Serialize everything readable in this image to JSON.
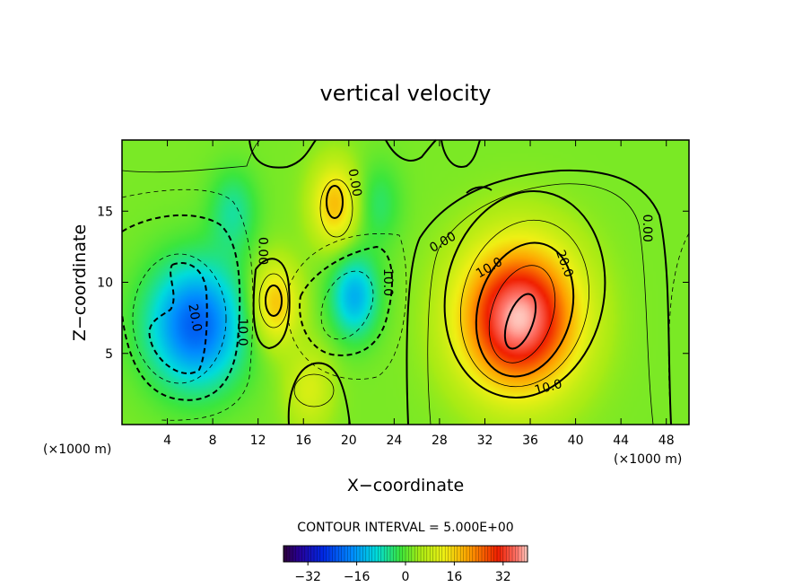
{
  "chart_data": {
    "type": "heatmap",
    "title": "vertical velocity",
    "xlabel": "X−coordinate",
    "ylabel": "Z−coordinate",
    "x_unit_left": "(×1000 m)",
    "x_unit_right": "(×1000 m)",
    "xlim": [
      0,
      50
    ],
    "ylim": [
      0,
      20
    ],
    "x_ticks": [
      4,
      8,
      12,
      16,
      20,
      24,
      28,
      32,
      36,
      40,
      44,
      48
    ],
    "y_ticks": [
      5,
      10,
      15
    ],
    "contour_interval_text": "CONTOUR INTERVAL = 5.000E+00",
    "colorbar": {
      "min": -40,
      "max": 40,
      "ticks": [
        -32,
        -16,
        0,
        16,
        32
      ],
      "tick_labels": [
        "−32",
        "−16",
        "0",
        "16",
        "32"
      ]
    },
    "contour_labels": [
      {
        "text": "0.00",
        "x": 20.5,
        "y": 17.0,
        "angle": 80
      },
      {
        "text": "0.00",
        "x": 12.4,
        "y": 12.2,
        "angle": 90
      },
      {
        "text": "0.00",
        "x": 28.3,
        "y": 12.8,
        "angle": -30
      },
      {
        "text": "0.00",
        "x": 46.3,
        "y": 13.8,
        "angle": 90
      },
      {
        "text": "10.0",
        "x": 10.6,
        "y": 6.5,
        "angle": 90
      },
      {
        "text": "10.0",
        "x": 23.4,
        "y": 10.0,
        "angle": 90
      },
      {
        "text": "10.0",
        "x": 32.4,
        "y": 11.0,
        "angle": -30
      },
      {
        "text": "10.0",
        "x": 37.6,
        "y": 2.6,
        "angle": -15
      },
      {
        "text": "20.0",
        "x": 6.4,
        "y": 7.5,
        "angle": 80
      },
      {
        "text": "20.0",
        "x": 39.0,
        "y": 11.3,
        "angle": 70
      }
    ],
    "field_centers": [
      {
        "x": 35.0,
        "z": 7.5,
        "w": 38
      },
      {
        "x": 6.5,
        "z": 7.0,
        "w": -24
      },
      {
        "x": 20.5,
        "z": 9.0,
        "w": -16
      },
      {
        "x": 13.5,
        "z": 8.5,
        "w": 16
      },
      {
        "x": 18.8,
        "z": 15.5,
        "w": 16
      },
      {
        "x": 16.5,
        "z": 2.5,
        "w": 8
      },
      {
        "x": 9.8,
        "z": 15.0,
        "w": -8
      },
      {
        "x": 22.5,
        "z": 15.5,
        "w": -6
      }
    ]
  }
}
